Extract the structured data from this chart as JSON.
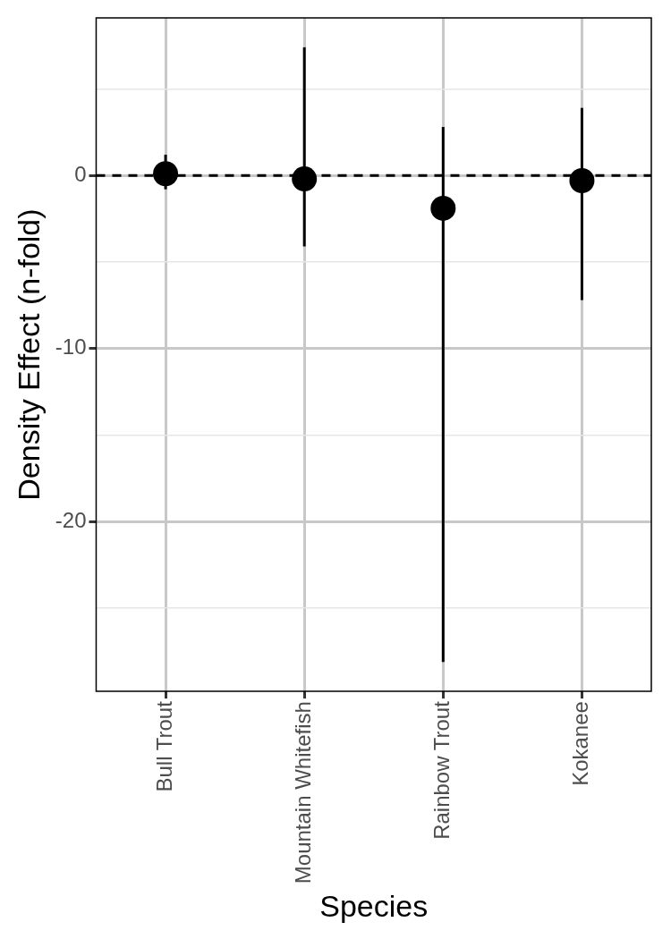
{
  "chart_data": {
    "type": "scatter",
    "xlabel": "Species",
    "ylabel": "Density Effect (n-fold)",
    "categories": [
      "Bull Trout",
      "Mountain Whitefish",
      "Rainbow Trout",
      "Kokanee"
    ],
    "values": [
      0.1,
      -0.2,
      -1.9,
      -0.3
    ],
    "errors": [
      [
        -0.8,
        1.2
      ],
      [
        -4.1,
        7.4
      ],
      [
        -28.1,
        2.8
      ],
      [
        -7.2,
        3.9
      ]
    ],
    "color": "#000000",
    "marker": "circle",
    "ylim": [
      -29.8,
      9.1
    ],
    "yticks": [
      {
        "value": -25,
        "label": null
      },
      -20,
      {
        "value": -15,
        "label": null
      },
      -10,
      {
        "value": -5,
        "label": null
      },
      0,
      {
        "value": 5,
        "label": null
      }
    ],
    "grid": true,
    "ref_lines": [
      {
        "axis": "y",
        "value": 0,
        "line_style": "dashed",
        "color": "#000000"
      }
    ]
  }
}
